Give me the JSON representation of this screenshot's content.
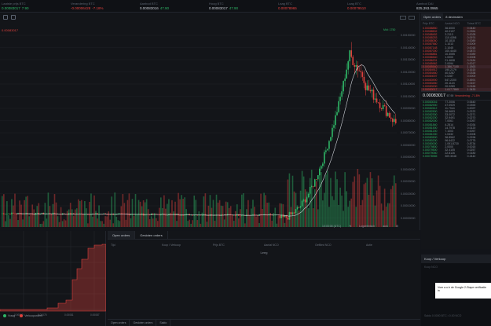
{
  "ticker": [
    {
      "label": "Laatste prijs BTC",
      "value": "0.00083017",
      "change": "7.90",
      "dir": "up"
    },
    {
      "label": "Verandering BTC",
      "value": "-0.00006428",
      "change": "-7.18%",
      "dir": "dn"
    },
    {
      "label": "Aanbod BTC",
      "value": "0.00083016",
      "change": "47.90",
      "dir": ""
    },
    {
      "label": "Hoog BTC",
      "value": "0.00083017",
      "change": "47.90",
      "dir": ""
    },
    {
      "label": "Laag BTC",
      "value": "0.00078965",
      "change": "",
      "dir": "dn"
    },
    {
      "label": "Laag BTC",
      "value": "0.00079510",
      "change": "",
      "dir": "dn"
    },
    {
      "label": "Aanbod DAI",
      "value": "825,393.0965",
      "change": "",
      "dir": ""
    }
  ],
  "chart": {
    "price_tag": "0.00083017",
    "live_label": "Mid: 1750",
    "yticks": [
      "0.00150000",
      "0.00140000",
      "0.00130000",
      "0.00120000",
      "0.00110000",
      "0.00100000",
      "0.00090000",
      "0.00080000",
      "0.00070000",
      "0.00060000",
      "0.00050000",
      "0.00040000",
      "0.00030000",
      "0.00020000",
      "0.00010000",
      "0.00000000"
    ],
    "xticks": [
      "26",
      "nov",
      "5",
      "10",
      "14",
      "16",
      "21",
      "26",
      "dec",
      "5",
      "10",
      "14",
      "18",
      "22",
      "26",
      "2018",
      "5",
      "10",
      "15",
      "20"
    ],
    "footer": [
      "10:03:08 (UTC)",
      "%",
      "Logaritmisch",
      "auto",
      "⚙"
    ]
  },
  "orderbook": {
    "tabs": [
      "Open orders",
      "8 decimalen"
    ],
    "headers": [
      "Prijs BTC",
      "Aantal NCO",
      "Totaal BTC"
    ],
    "asks": [
      [
        "0.00088850",
        "36.6000",
        "0.0440"
      ],
      [
        "0.00088502",
        "40.0137",
        "0.0354"
      ],
      [
        "0.00088452",
        "3.2113",
        "0.0028"
      ],
      [
        "0.00088253",
        "110.4398",
        "0.0974"
      ],
      [
        "0.00088050",
        "10.1810",
        "0.0089"
      ],
      [
        "0.00087560",
        "1.1013",
        "0.0009"
      ],
      [
        "0.00087148",
        "2.1045",
        "0.0018"
      ],
      [
        "0.00087000",
        "100.4440",
        "0.0873"
      ],
      [
        "0.00086881",
        "10.3055",
        "0.0089"
      ],
      [
        "0.00086540",
        "1.0000",
        "0.0008"
      ],
      [
        "0.00086201",
        "21.4608",
        "0.0184"
      ],
      [
        "0.00085962",
        "2.0094",
        "0.0017"
      ],
      [
        "0.00085540",
        "1.386.7100",
        "1.1863"
      ],
      [
        "0.00084912",
        "190.2179",
        "0.1615"
      ],
      [
        "0.00084460",
        "40.0287",
        "0.0338"
      ],
      [
        "0.00084007",
        "0.0287",
        "0.0000"
      ],
      [
        "0.00083900",
        "547.2200",
        "0.4591"
      ],
      [
        "0.00083450",
        "20.1124",
        "0.0167"
      ],
      [
        "0.00083200",
        "20.0289",
        "0.0166"
      ],
      [
        "0.00083017",
        "1.617.7860",
        "1.3430"
      ]
    ],
    "mid_price": "0.00083017",
    "mid_usd": "67.90",
    "mid_change": "Verandering: -7.18%",
    "bids": [
      [
        "0.00083016",
        "77.2006",
        "0.0640"
      ],
      [
        "0.00082900",
        "47.0929",
        "0.0390"
      ],
      [
        "0.00082612",
        "11.7944",
        "0.0097"
      ],
      [
        "0.00082500",
        "26.9653",
        "0.0222"
      ],
      [
        "0.00082300",
        "33.0072",
        "0.0271"
      ],
      [
        "0.00082200",
        "32.9491",
        "0.0270"
      ],
      [
        "0.00082000",
        "7.0061",
        "0.0057"
      ],
      [
        "0.00081840",
        "4.2514",
        "0.0034"
      ],
      [
        "0.00081500",
        "14.7978",
        "0.0120"
      ],
      [
        "0.00081200",
        "7.1003",
        "0.0057"
      ],
      [
        "0.00081000",
        "1.0432",
        "0.0008"
      ],
      [
        "0.00080500",
        "36.8562",
        "0.0296"
      ],
      [
        "0.00080200",
        "96.6422",
        "0.0775"
      ],
      [
        "0.00080000",
        "1.091.8720",
        "0.8734"
      ],
      [
        "0.00079800",
        "2.0000",
        "0.0015"
      ],
      [
        "0.00079500",
        "32.4105",
        "0.0257"
      ],
      [
        "0.00079050",
        "22.8126",
        "0.0180"
      ],
      [
        "0.00078965",
        "309.3048",
        "0.2442"
      ]
    ]
  },
  "depth": {
    "legend_buy": "Vraag",
    "legend_sell": "Verkooporders",
    "buy_color": "#2fb566",
    "sell_color": "#e0413d"
  },
  "orders": {
    "tabs": [
      "Open orders",
      "Gesloten orders"
    ],
    "headers": [
      "Tijd",
      "Koop / Verkoop",
      "Prijs BTC",
      "Aantal NCO",
      "Gefilled NCO",
      "Actie"
    ],
    "empty": "Leeg",
    "bottom_tabs": [
      "Open orders",
      "Gesloten orders",
      "Saldo"
    ]
  },
  "trade": {
    "title": "Koop / Verkoop",
    "sub": "Koop NCO",
    "popup_text": "Voer a.u.b de Google 2-Stape verificatie in",
    "row": "Saldo  0.0000  BTC  •  0.00  NCO"
  }
}
